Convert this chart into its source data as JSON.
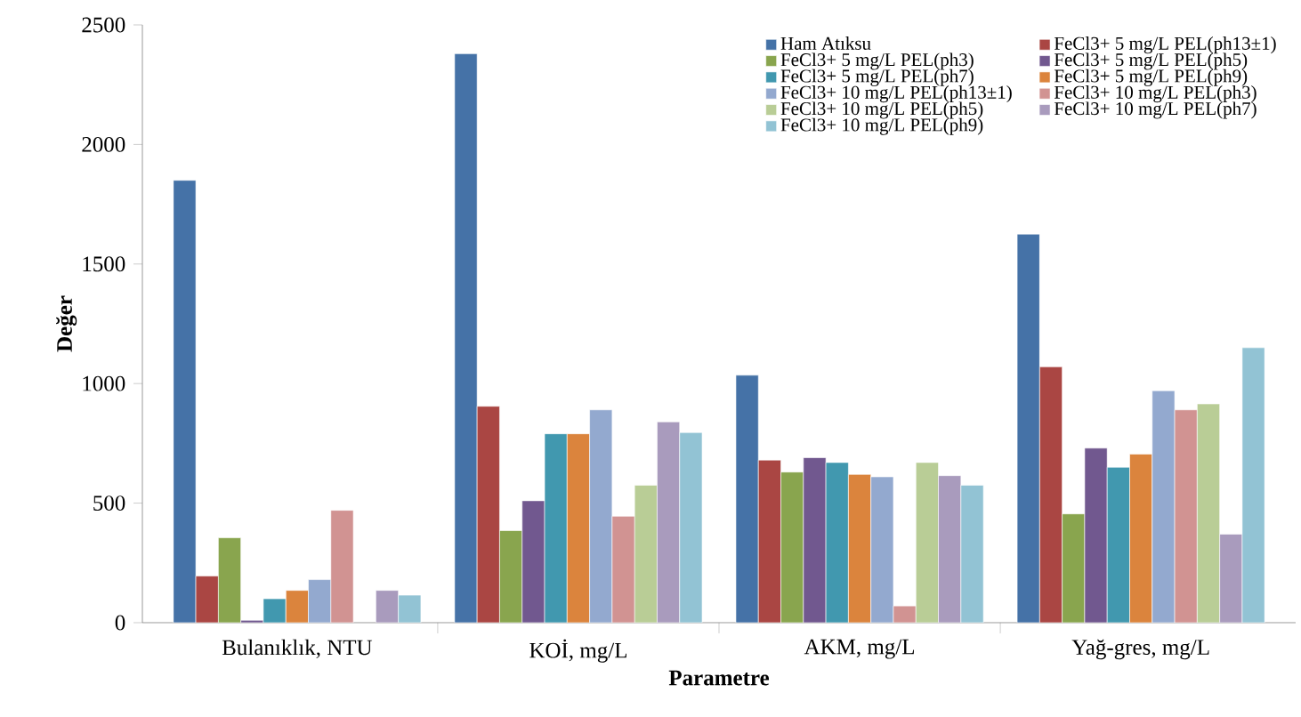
{
  "chart_data": {
    "type": "bar",
    "xlabel": "Parametre",
    "ylabel": "Değer",
    "categories": [
      "Bulanıklık, NTU",
      "KOİ, mg/L",
      "AKM, mg/L",
      "Yağ-gres, mg/L"
    ],
    "ylim": [
      0,
      2500
    ],
    "yticks": [
      0,
      500,
      1000,
      1500,
      2000,
      2500
    ],
    "grid": false,
    "legend": "top right",
    "series": [
      {
        "name": "Ham Atıksu",
        "color": "#4572a7",
        "values": [
          1850,
          2380,
          1035,
          1625
        ]
      },
      {
        "name": "FeCl3+ 5 mg/L PEL(ph13±1)",
        "color": "#aa4643",
        "values": [
          195,
          905,
          680,
          1070
        ]
      },
      {
        "name": "FeCl3+ 5 mg/L PEL(ph3)",
        "color": "#89a54e",
        "values": [
          355,
          385,
          630,
          455
        ]
      },
      {
        "name": "FeCl3+ 5 mg/L PEL(ph5)",
        "color": "#71588f",
        "values": [
          10,
          510,
          690,
          730
        ]
      },
      {
        "name": "FeCl3+ 5 mg/L PEL(ph7)",
        "color": "#4198af",
        "values": [
          100,
          790,
          670,
          650
        ]
      },
      {
        "name": "FeCl3+ 5 mg/L PEL(ph9)",
        "color": "#db843d",
        "values": [
          135,
          790,
          620,
          705
        ]
      },
      {
        "name": "FeCl3+ 10 mg/L PEL(ph13±1)",
        "color": "#93a9cf",
        "values": [
          180,
          890,
          610,
          970
        ]
      },
      {
        "name": "FeCl3+ 10 mg/L PEL(ph3)",
        "color": "#d19392",
        "values": [
          470,
          445,
          70,
          890
        ]
      },
      {
        "name": "FeCl3+ 10 mg/L PEL(ph5)",
        "color": "#b9cd96",
        "values": [
          null,
          575,
          670,
          915
        ]
      },
      {
        "name": "FeCl3+ 10 mg/L PEL(ph7)",
        "color": "#a99bbd",
        "values": [
          135,
          840,
          615,
          370
        ]
      },
      {
        "name": "FeCl3+ 10 mg/L PEL(ph9)",
        "color": "#92c3d4",
        "values": [
          115,
          795,
          575,
          1150
        ]
      }
    ]
  }
}
